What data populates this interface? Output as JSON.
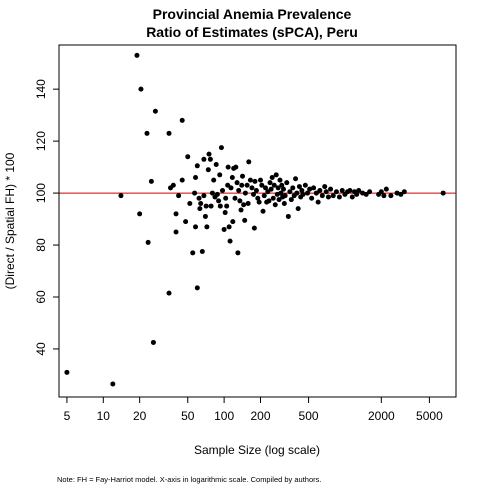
{
  "chart_data": {
    "type": "scatter",
    "title": "Provincial Anemia Prevalence",
    "subtitle": "Ratio of Estimates (sPCA), Peru",
    "xlabel": "Sample Size (log scale)",
    "ylabel": "(Direct / Spatial FH) * 100",
    "x_scale": "log",
    "xlim": [
      4.3,
      8300
    ],
    "ylim": [
      21.5,
      157
    ],
    "x_ticks": [
      5,
      10,
      20,
      50,
      100,
      200,
      500,
      2000,
      5000
    ],
    "x_tick_labels": [
      "5",
      "10",
      "20",
      "50",
      "100",
      "200",
      "500",
      "2000",
      "5000"
    ],
    "y_ticks": [
      40,
      60,
      80,
      100,
      120,
      140
    ],
    "y_tick_labels": [
      "40",
      "60",
      "80",
      "100",
      "120",
      "140"
    ],
    "reference_line": {
      "y": 100,
      "color": "#cc0000"
    },
    "grid": false,
    "point_color": "#000000",
    "points": [
      [
        5,
        31
      ],
      [
        12,
        26.5
      ],
      [
        14,
        99
      ],
      [
        19,
        153
      ],
      [
        20,
        92
      ],
      [
        20.5,
        140
      ],
      [
        23,
        123
      ],
      [
        23.5,
        81
      ],
      [
        25,
        104.5
      ],
      [
        26,
        42.5
      ],
      [
        27,
        131.5
      ],
      [
        35,
        61.5
      ],
      [
        35,
        123
      ],
      [
        36,
        102
      ],
      [
        38,
        103
      ],
      [
        40,
        85
      ],
      [
        40,
        92
      ],
      [
        42,
        99
      ],
      [
        45,
        105
      ],
      [
        45,
        128
      ],
      [
        48,
        89
      ],
      [
        50,
        114
      ],
      [
        52,
        96
      ],
      [
        55,
        77
      ],
      [
        57,
        100
      ],
      [
        58,
        87
      ],
      [
        58,
        106
      ],
      [
        60,
        110.5
      ],
      [
        60,
        63.5
      ],
      [
        62,
        98
      ],
      [
        63,
        94
      ],
      [
        64,
        96
      ],
      [
        66,
        77.5
      ],
      [
        68,
        99
      ],
      [
        68,
        113
      ],
      [
        70,
        91
      ],
      [
        71,
        95
      ],
      [
        72,
        87
      ],
      [
        74,
        109
      ],
      [
        75,
        115
      ],
      [
        77,
        113
      ],
      [
        78,
        95
      ],
      [
        80,
        100
      ],
      [
        82,
        105
      ],
      [
        84,
        98.5
      ],
      [
        86,
        111
      ],
      [
        88,
        99.5
      ],
      [
        90,
        97
      ],
      [
        92,
        107
      ],
      [
        93,
        95
      ],
      [
        95,
        117.5
      ],
      [
        97,
        101
      ],
      [
        100,
        86
      ],
      [
        102,
        92.5
      ],
      [
        103,
        98
      ],
      [
        105,
        95
      ],
      [
        107,
        103
      ],
      [
        108,
        110
      ],
      [
        110,
        87
      ],
      [
        112,
        81.5
      ],
      [
        114,
        102
      ],
      [
        117,
        106
      ],
      [
        118,
        89
      ],
      [
        120,
        109.5
      ],
      [
        123,
        98
      ],
      [
        125,
        110
      ],
      [
        128,
        104
      ],
      [
        130,
        77
      ],
      [
        132,
        101
      ],
      [
        135,
        97
      ],
      [
        138,
        93.5
      ],
      [
        140,
        103
      ],
      [
        142,
        106.5
      ],
      [
        145,
        95.5
      ],
      [
        148,
        89.5
      ],
      [
        150,
        100
      ],
      [
        155,
        103
      ],
      [
        158,
        96
      ],
      [
        160,
        112
      ],
      [
        165,
        105
      ],
      [
        170,
        102
      ],
      [
        175,
        99.5
      ],
      [
        178,
        86.5
      ],
      [
        180,
        104.5
      ],
      [
        185,
        101
      ],
      [
        190,
        98
      ],
      [
        195,
        96.5
      ],
      [
        200,
        105
      ],
      [
        205,
        103
      ],
      [
        210,
        93
      ],
      [
        215,
        99
      ],
      [
        220,
        102
      ],
      [
        225,
        96.5
      ],
      [
        230,
        100.5
      ],
      [
        235,
        97
      ],
      [
        240,
        104
      ],
      [
        245,
        101.5
      ],
      [
        250,
        106
      ],
      [
        255,
        98
      ],
      [
        260,
        103
      ],
      [
        265,
        95.5
      ],
      [
        270,
        107
      ],
      [
        275,
        99.5
      ],
      [
        280,
        102
      ],
      [
        285,
        97.5
      ],
      [
        290,
        105
      ],
      [
        295,
        100
      ],
      [
        300,
        103
      ],
      [
        305,
        98.5
      ],
      [
        310,
        101.5
      ],
      [
        315,
        96
      ],
      [
        320,
        99
      ],
      [
        330,
        104
      ],
      [
        340,
        91
      ],
      [
        350,
        100.5
      ],
      [
        360,
        97.5
      ],
      [
        370,
        102
      ],
      [
        380,
        99
      ],
      [
        390,
        105.5
      ],
      [
        400,
        100
      ],
      [
        410,
        94
      ],
      [
        420,
        102.5
      ],
      [
        430,
        98.5
      ],
      [
        440,
        101
      ],
      [
        450,
        99.5
      ],
      [
        470,
        103
      ],
      [
        490,
        100
      ],
      [
        510,
        101.5
      ],
      [
        530,
        98
      ],
      [
        550,
        102
      ],
      [
        580,
        100
      ],
      [
        600,
        96.5
      ],
      [
        620,
        101
      ],
      [
        650,
        99
      ],
      [
        680,
        102.5
      ],
      [
        700,
        100.5
      ],
      [
        730,
        98.5
      ],
      [
        760,
        101.5
      ],
      [
        800,
        99
      ],
      [
        850,
        100.5
      ],
      [
        900,
        98.5
      ],
      [
        950,
        101
      ],
      [
        1000,
        99.5
      ],
      [
        1050,
        100.5
      ],
      [
        1100,
        101
      ],
      [
        1150,
        98.5
      ],
      [
        1200,
        100.5
      ],
      [
        1250,
        99.5
      ],
      [
        1300,
        101
      ],
      [
        1400,
        100
      ],
      [
        1500,
        99.5
      ],
      [
        1600,
        100.5
      ],
      [
        1900,
        99.5
      ],
      [
        2000,
        100.5
      ],
      [
        2100,
        99
      ],
      [
        2200,
        101.5
      ],
      [
        2400,
        99
      ],
      [
        2700,
        100
      ],
      [
        2900,
        99.5
      ],
      [
        3100,
        100.5
      ],
      [
        6500,
        100
      ]
    ]
  },
  "note": "Note: FH = Fay-Harriot model. X-axis in logarithmic scale. Compiled by authors."
}
